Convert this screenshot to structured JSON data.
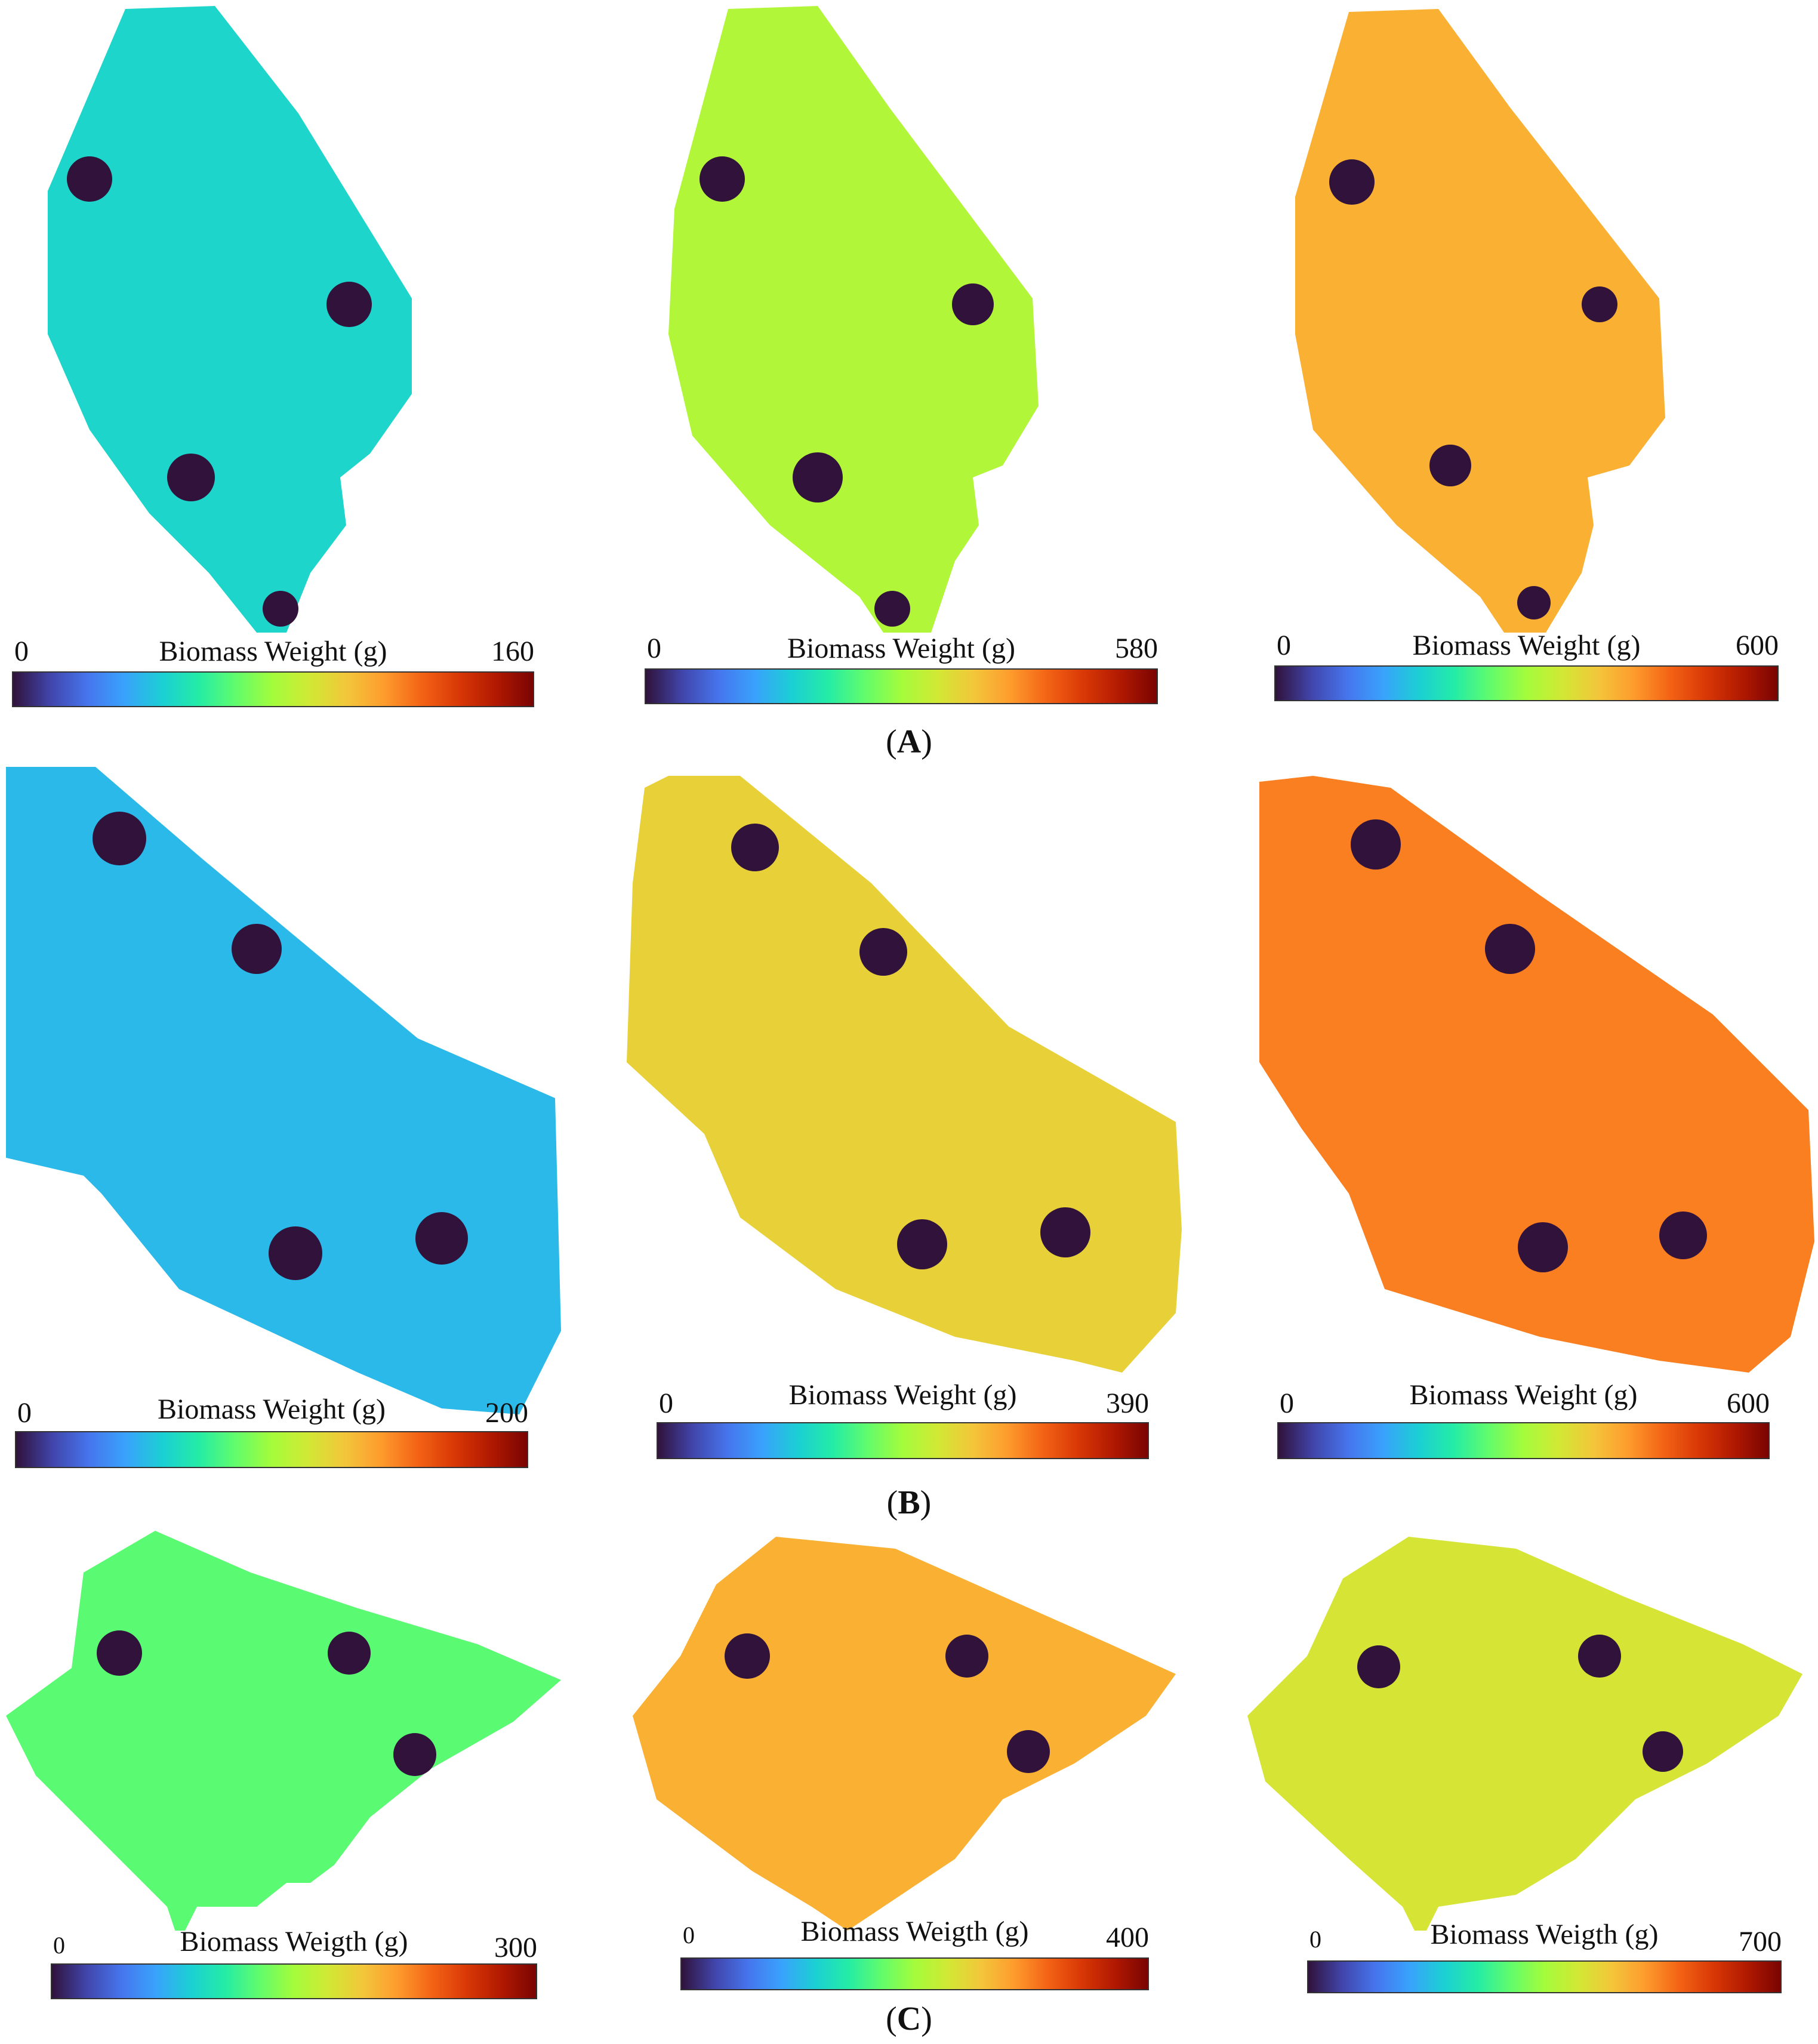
{
  "colormap": [
    "#30123b",
    "#4145ab",
    "#4675ed",
    "#39a2fc",
    "#1bcfd4",
    "#24eca6",
    "#61fc6c",
    "#a4fc3b",
    "#d1e834",
    "#f3c63a",
    "#fe9b2d",
    "#f36315",
    "#d93806",
    "#b11901",
    "#7a0402"
  ],
  "rows": [
    {
      "label": "A",
      "panels": [
        {
          "cbar_min": "0",
          "cbar_max": "160",
          "cbar_title": "Biomass Weight (g)",
          "dominant_level": 0.3
        },
        {
          "cbar_min": "0",
          "cbar_max": "580",
          "cbar_title": "Biomass Weight (g)",
          "dominant_level": 0.52
        },
        {
          "cbar_min": "0",
          "cbar_max": "600",
          "cbar_title": "Biomass Weight (g)",
          "dominant_level": 0.68
        }
      ]
    },
    {
      "label": "B",
      "panels": [
        {
          "cbar_min": "0",
          "cbar_max": "200",
          "cbar_title": "Biomass Weight (g)",
          "dominant_level": 0.25
        },
        {
          "cbar_min": "0",
          "cbar_max": "390",
          "cbar_title": "Biomass Weight (g)",
          "dominant_level": 0.62
        },
        {
          "cbar_min": "0",
          "cbar_max": "600",
          "cbar_title": "Biomass Weight (g)",
          "dominant_level": 0.75
        }
      ]
    },
    {
      "label": "C",
      "panels": [
        {
          "cbar_min": "0",
          "cbar_max": "300",
          "cbar_title": "Biomass Weigth (g)",
          "dominant_level": 0.42
        },
        {
          "cbar_min": "0",
          "cbar_max": "400",
          "cbar_title": "Biomass Weigth (g)",
          "dominant_level": 0.68
        },
        {
          "cbar_min": "0",
          "cbar_max": "700",
          "cbar_title": "Biomass Weigth (g)",
          "dominant_level": 0.58
        }
      ]
    }
  ]
}
